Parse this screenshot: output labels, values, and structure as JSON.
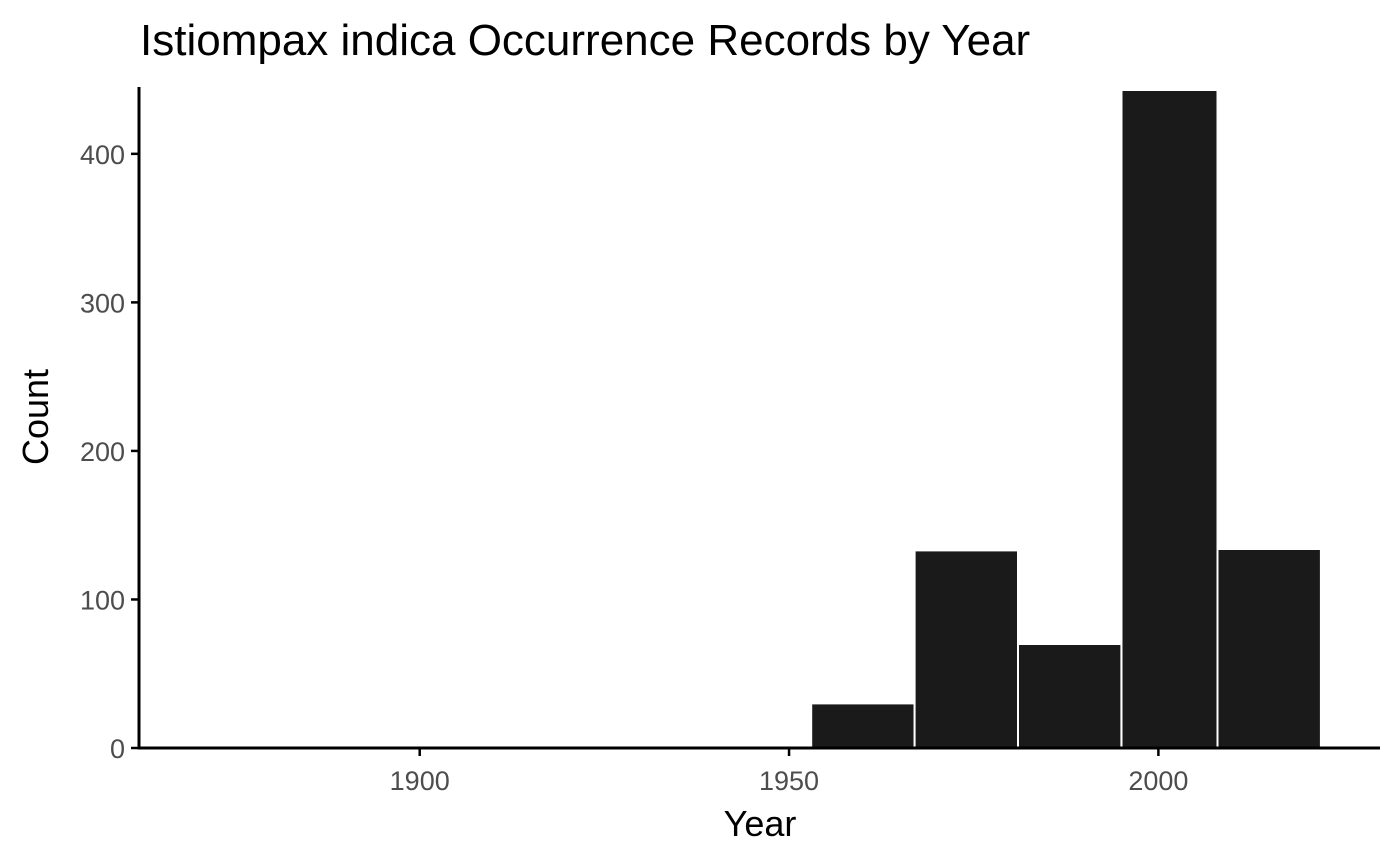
{
  "chart_data": {
    "type": "bar",
    "title": "Istiompax indica Occurrence Records by Year",
    "xlabel": "Year",
    "ylabel": "Count",
    "xlim": [
      1862,
      2030
    ],
    "ylim": [
      0,
      445
    ],
    "x_ticks": [
      1900,
      1950,
      2000
    ],
    "y_ticks": [
      0,
      100,
      200,
      300,
      400
    ],
    "bins": [
      {
        "start": 1953,
        "end": 1967,
        "count": 30
      },
      {
        "start": 1967,
        "end": 1981,
        "count": 133
      },
      {
        "start": 1981,
        "end": 1995,
        "count": 70
      },
      {
        "start": 1995,
        "end": 2008,
        "count": 443
      },
      {
        "start": 2008,
        "end": 2022,
        "count": 134
      }
    ],
    "bar_color": "#1a1a1a",
    "grid": false
  }
}
